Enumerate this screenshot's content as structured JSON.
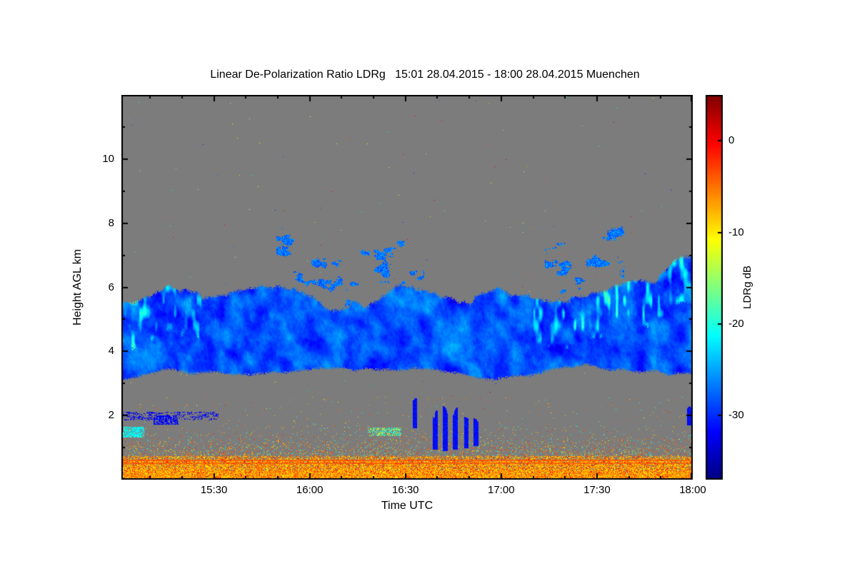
{
  "page": {
    "background": "#ffffff"
  },
  "chart_data": {
    "type": "heatmap",
    "title": "Linear De-Polarization Ratio LDRg   15:01 28.04.2015 - 18:00 28.04.2015 Muenchen",
    "quantity": "Linear De-Polarization Ratio LDRg",
    "location": "Muenchen",
    "time_start": "15:01 28.04.2015",
    "time_end": "18:00 28.04.2015",
    "xlabel": "Time UTC",
    "ylabel": "Height AGL km",
    "x_range_minutes": 179,
    "x_ticks": [
      {
        "label": "15:30",
        "minutes": 29
      },
      {
        "label": "16:00",
        "minutes": 59
      },
      {
        "label": "16:30",
        "minutes": 89
      },
      {
        "label": "17:00",
        "minutes": 119
      },
      {
        "label": "17:30",
        "minutes": 149
      },
      {
        "label": "18:00",
        "minutes": 179
      }
    ],
    "x_minor_step_min": 10,
    "x_first_minor_min": 9,
    "y_range_km": [
      0,
      12
    ],
    "y_ticks_km": [
      2,
      4,
      6,
      8,
      10
    ],
    "y_minor_ticks_km": [
      1,
      3,
      5,
      7,
      9,
      11
    ],
    "colorbar": {
      "label": "LDRg dB",
      "ticks_db": [
        0,
        -10,
        -20,
        -30
      ],
      "vmin_db": -37,
      "vmax_db": 5,
      "colormap": "jet",
      "orientation": "vertical-right"
    },
    "no_data_color": "#7c7c7c",
    "frame_color": "#000000",
    "features": [
      {
        "name": "cloud-layer",
        "description": "continuous blue cloud band across the whole period",
        "height_km": [
          3.2,
          6.2
        ],
        "typical_ldr_db": [
          -32,
          -24
        ],
        "notes": "cloud tops rise to ~7 km with cyan fall-streak tops after 17:30; top dips to ~4.8 km with detached wisps around 16:00-16:20"
      },
      {
        "name": "ground-clutter",
        "description": "dense yellow/orange/red speckle near the surface",
        "height_km": [
          0,
          1.6
        ],
        "typical_ldr_db": [
          -13,
          0
        ],
        "notes": "nearly solid below ~0.7 km with bright orange horizontal lines near 0.5-0.6 km and sparse red dots"
      },
      {
        "name": "vertical-blue-filaments",
        "description": "narrow dark-blue vertical streaks",
        "time_utc": [
          "16:35",
          "16:55"
        ],
        "height_km": [
          0.9,
          2.4
        ],
        "typical_ldr_db": -31
      },
      {
        "name": "blue-dashes",
        "description": "broken dark-blue horizontal dashes near 2 km",
        "time_utc": [
          "15:01",
          "15:30"
        ],
        "height_km": [
          1.85,
          2.1
        ],
        "typical_ldr_db": -31
      },
      {
        "name": "cyan-patch",
        "description": "small cyan patch at the left plot edge",
        "time_utc": [
          "15:01",
          "15:08"
        ],
        "height_km": [
          1.35,
          1.65
        ],
        "typical_ldr_db": -20
      },
      {
        "name": "cyan-yellow-cluster",
        "description": "mixed cyan/yellow speckle cluster",
        "time_utc": [
          "16:18",
          "16:28"
        ],
        "height_km": [
          1.4,
          1.6
        ]
      },
      {
        "name": "isolated-speckles-aloft",
        "description": "sparse isolated colored pixels scattered in the gray no-data region",
        "height_km": [
          2.5,
          11.5
        ]
      },
      {
        "name": "far-right-blue-streak",
        "description": "short dark-blue vertical streak at right edge",
        "time_utc": [
          "17:59",
          "18:00"
        ],
        "height_km": [
          1.7,
          2.2
        ]
      }
    ]
  }
}
